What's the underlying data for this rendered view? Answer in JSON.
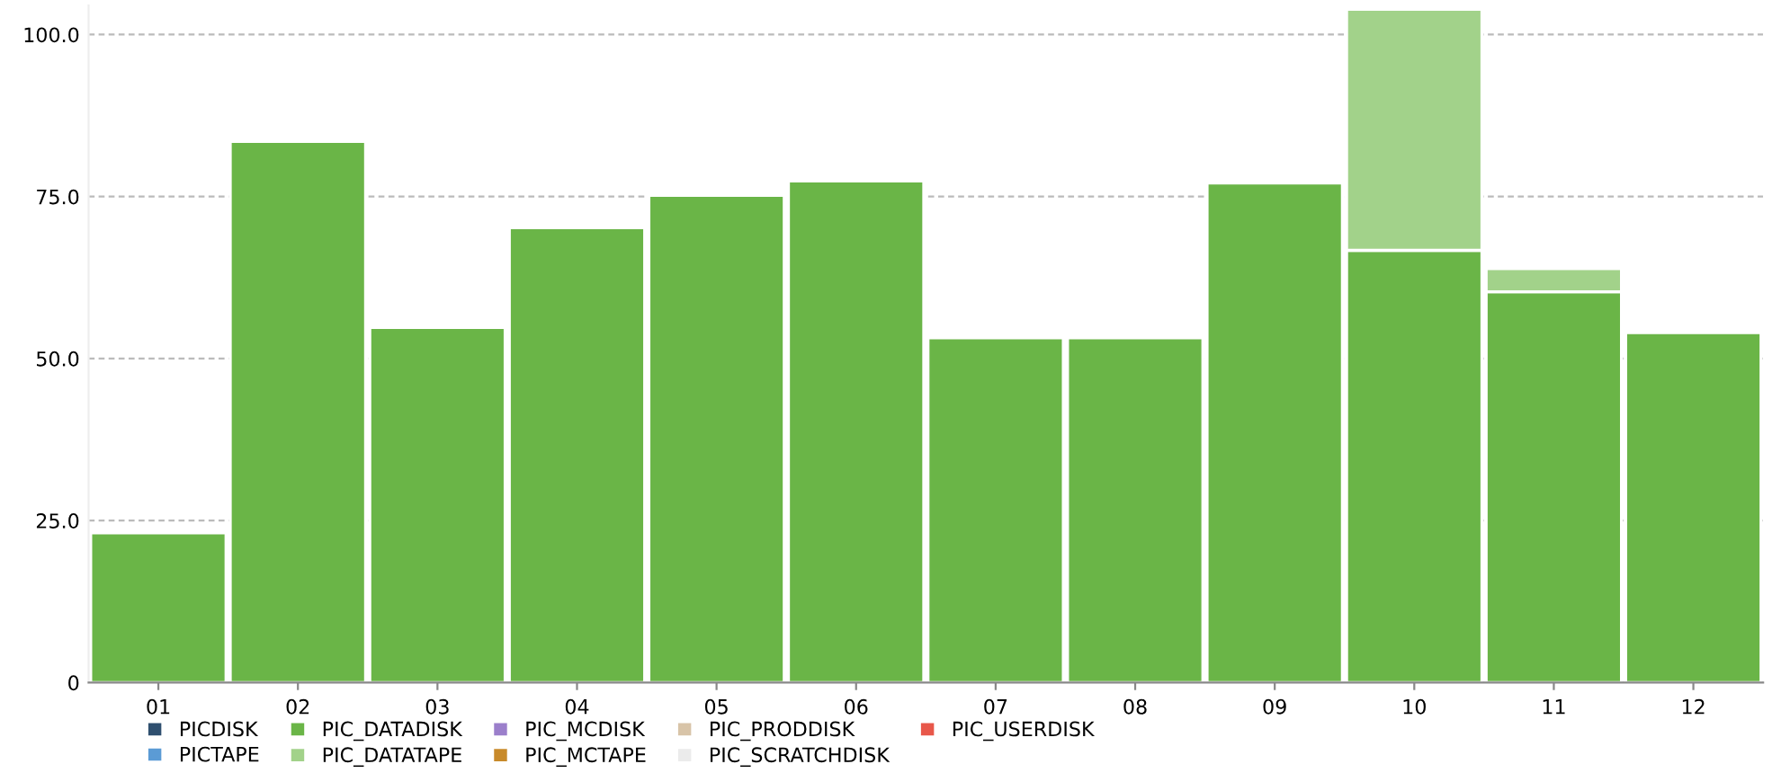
{
  "chart_data": {
    "type": "bar",
    "stacked": true,
    "categories": [
      "01",
      "02",
      "03",
      "04",
      "05",
      "06",
      "07",
      "08",
      "09",
      "10",
      "11",
      "12"
    ],
    "series": [
      {
        "name": "PICDISK",
        "color": "#2f4f6f",
        "values": [
          null,
          null,
          null,
          null,
          null,
          null,
          null,
          null,
          null,
          null,
          null,
          null
        ]
      },
      {
        "name": "PIC_DATADISK",
        "color": "#6ab547",
        "values": [
          23.1,
          83.5,
          54.8,
          70.2,
          75.2,
          77.4,
          53.2,
          53.2,
          77.1,
          66.7,
          60.3,
          54.0
        ]
      },
      {
        "name": "PIC_MCDISK",
        "color": "#9b7fcb",
        "values": [
          null,
          null,
          null,
          null,
          null,
          null,
          null,
          null,
          null,
          null,
          null,
          null
        ]
      },
      {
        "name": "PIC_PRODDISK",
        "color": "#d8c4a8",
        "values": [
          null,
          null,
          null,
          null,
          null,
          null,
          null,
          null,
          null,
          null,
          null,
          null
        ]
      },
      {
        "name": "PIC_USERDISK",
        "color": "#e8574a",
        "values": [
          null,
          null,
          null,
          null,
          null,
          null,
          null,
          null,
          null,
          null,
          null,
          null
        ]
      },
      {
        "name": "PICTAPE",
        "color": "#5b9bd5",
        "values": [
          null,
          null,
          null,
          null,
          null,
          null,
          null,
          null,
          null,
          null,
          null,
          null
        ]
      },
      {
        "name": "PIC_DATATAPE",
        "color": "#a2d28a",
        "values": [
          null,
          null,
          null,
          null,
          null,
          null,
          null,
          null,
          null,
          37.2,
          3.6,
          null
        ]
      },
      {
        "name": "PIC_MCTAPE",
        "color": "#c88a2a",
        "values": [
          null,
          null,
          null,
          null,
          null,
          null,
          null,
          null,
          null,
          null,
          null,
          null
        ]
      },
      {
        "name": "PIC_SCRATCHDISK",
        "color": "#ebebeb",
        "values": [
          null,
          null,
          null,
          null,
          null,
          null,
          null,
          null,
          null,
          null,
          null,
          null
        ]
      }
    ],
    "ylim": [
      0,
      104.5
    ],
    "yticks": [
      0,
      {
        "value": 25,
        "label": "25.0"
      },
      {
        "value": 50,
        "label": "50.0"
      },
      {
        "value": 75,
        "label": "75.0"
      },
      {
        "value": 100,
        "label": "100.0"
      }
    ],
    "grid": "y",
    "legend": "bottom"
  }
}
